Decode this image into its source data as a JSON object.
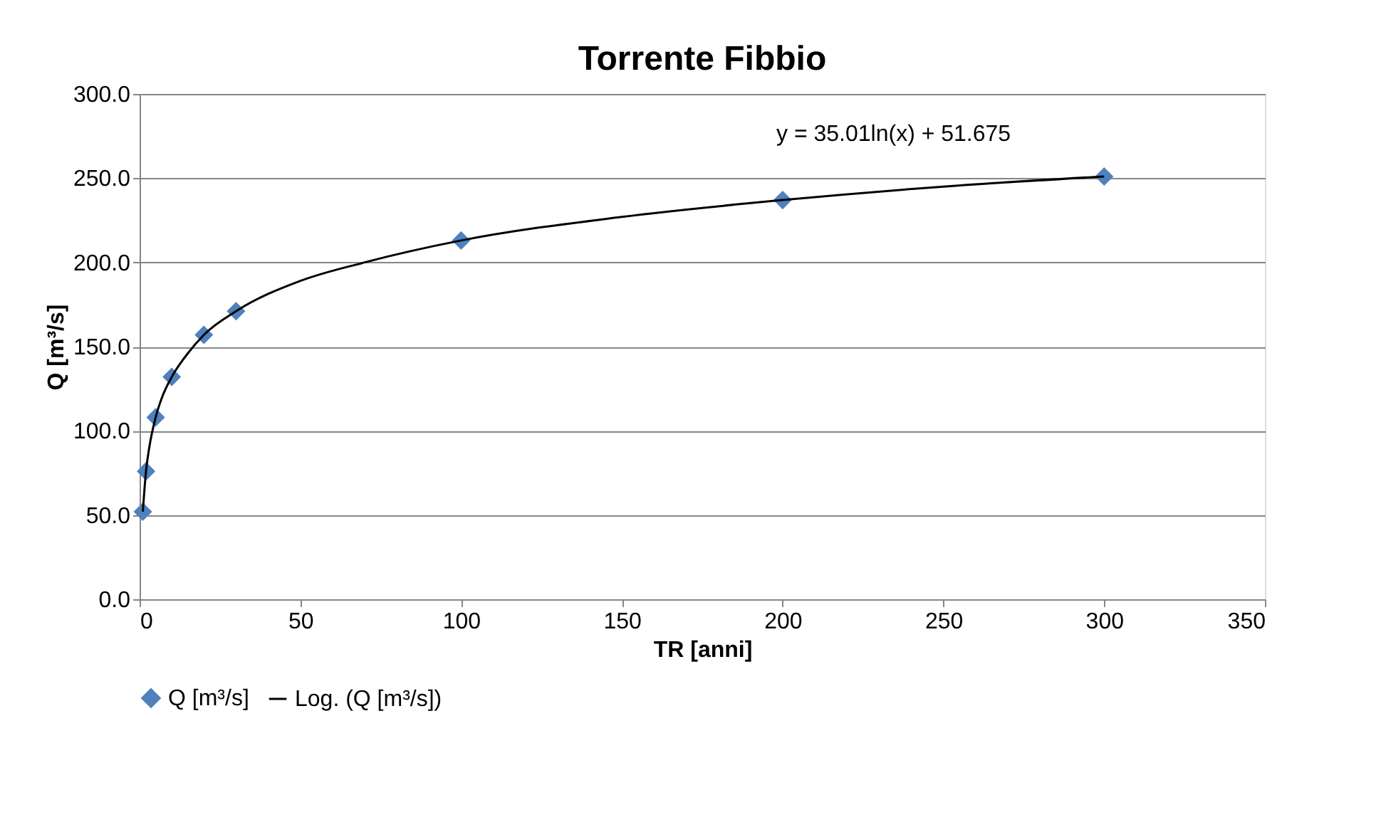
{
  "chart_data": {
    "type": "scatter",
    "title": "Torrente Fibbio",
    "xlabel": "TR [anni]",
    "ylabel": "Q [m³/s]",
    "series": [
      {
        "name": "Q [m³/s]",
        "color": "#4f81bd",
        "marker": "diamond",
        "x": [
          1,
          2,
          5,
          10,
          20,
          30,
          100,
          200,
          300
        ],
        "values": [
          52,
          76,
          108,
          132,
          157,
          171,
          213,
          237,
          251
        ]
      },
      {
        "name": "Log. (Q [m³/s])",
        "type": "line",
        "color": "#000000",
        "marker": "none",
        "line_style": "solid",
        "x": [
          1,
          2,
          3,
          5,
          7,
          10,
          15,
          20,
          30,
          50,
          70,
          100,
          150,
          200,
          250,
          300
        ],
        "values": [
          52,
          76,
          90,
          108,
          120,
          132,
          146,
          157,
          171,
          189,
          200,
          213,
          227,
          237,
          245,
          251
        ]
      }
    ],
    "xlim": [
      0,
      350
    ],
    "xticks": [
      0,
      50,
      100,
      150,
      200,
      250,
      300,
      350
    ],
    "ylim": [
      0,
      300
    ],
    "yticks": [
      {
        "value": 0,
        "label": "0.0"
      },
      {
        "value": 50,
        "label": "50.0"
      },
      {
        "value": 100,
        "label": "100.0"
      },
      {
        "value": 150,
        "label": "150.0"
      },
      {
        "value": 200,
        "label": "200.0"
      },
      {
        "value": 250,
        "label": "250.0"
      },
      {
        "value": 300,
        "label": "300.0"
      }
    ],
    "grid": "y",
    "legend": "bottom",
    "annotations": [
      "y = 35.01ln(x) + 51.675"
    ]
  }
}
